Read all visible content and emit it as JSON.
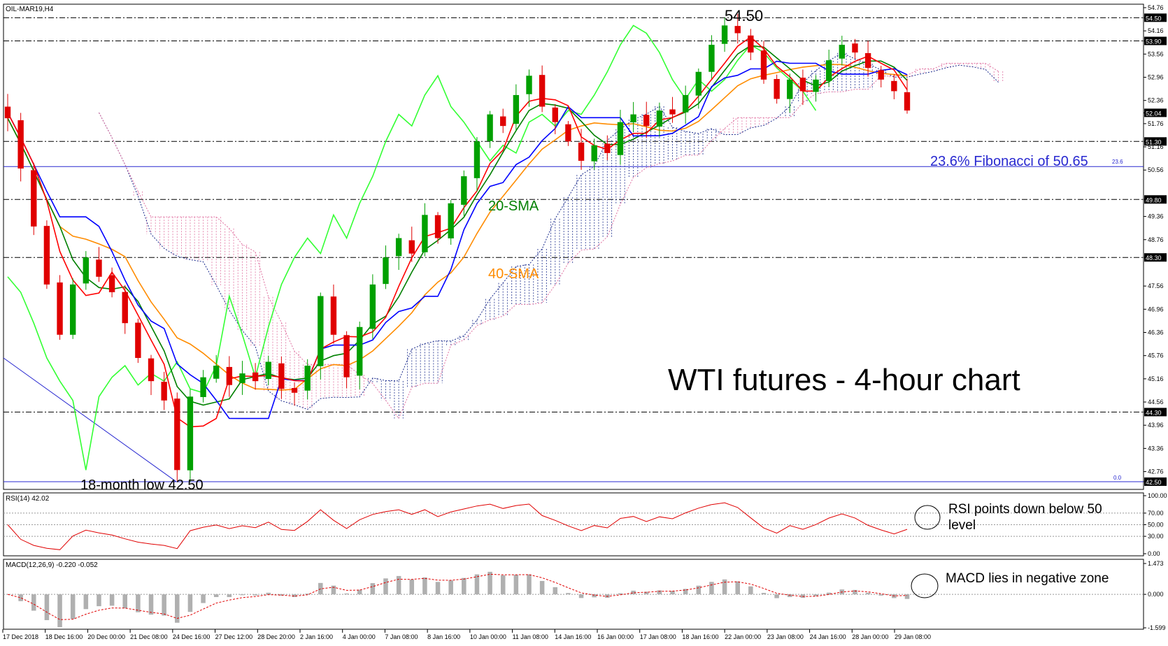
{
  "header": {
    "main_title": "OIL-MAR19,H4",
    "rsi_title": "RSI(14) 42.02",
    "macd_title": "MACD(12,26,9) -0.220 -0.052"
  },
  "annotations": {
    "chart_title": "WTI futures - 4-hour chart",
    "high_label": "54.50",
    "low_label": "18-month low 42.50",
    "fib_label": "23.6% Fibonacci of 50.65",
    "fib_small": "23.6",
    "zero_small": "0.0",
    "sma20_label": "20-SMA",
    "sma40_label": "40-SMA",
    "rsi_note_1": "RSI points down below 50",
    "rsi_note_2": "level",
    "macd_note": "MACD lies in negative zone"
  },
  "chart_data": {
    "type": "candlestick",
    "price_axis": {
      "ticks": [
        "54.76",
        "54.50",
        "54.16",
        "53.90",
        "53.56",
        "52.96",
        "52.36",
        "52.04",
        "51.76",
        "51.30",
        "51.16",
        "50.56",
        "49.80",
        "49.36",
        "48.76",
        "48.30",
        "47.56",
        "46.96",
        "46.36",
        "45.76",
        "45.16",
        "44.56",
        "44.30",
        "43.96",
        "43.36",
        "42.76",
        "42.50"
      ],
      "ylim": [
        42.3,
        54.85
      ]
    },
    "x_labels": [
      "17 Dec 2018",
      "18 Dec 16:00",
      "20 Dec 00:00",
      "21 Dec 08:00",
      "24 Dec 16:00",
      "27 Dec 12:00",
      "28 Dec 20:00",
      "2 Jan 16:00",
      "4 Jan 00:00",
      "7 Jan 08:00",
      "8 Jan 16:00",
      "10 Jan 00:00",
      "11 Jan 08:00",
      "14 Jan 16:00",
      "16 Jan 00:00",
      "17 Jan 08:00",
      "18 Jan 16:00",
      "22 Jan 00:00",
      "23 Jan 08:00",
      "24 Jan 16:00",
      "28 Jan 00:00",
      "29 Jan 08:00"
    ],
    "levels": [
      {
        "value": 54.5,
        "style": "dash-dot",
        "label": "54.50"
      },
      {
        "value": 53.9,
        "style": "dash-dot",
        "label": "53.90"
      },
      {
        "value": 51.3,
        "style": "dash-dot",
        "label": "51.30"
      },
      {
        "value": 50.65,
        "style": "solid-blue",
        "label": "23.6"
      },
      {
        "value": 49.8,
        "style": "dash-dot",
        "label": "49.80"
      },
      {
        "value": 48.3,
        "style": "dash-dot",
        "label": "48.30"
      },
      {
        "value": 44.3,
        "style": "dash-dot",
        "label": "44.30"
      },
      {
        "value": 42.5,
        "style": "solid-blue",
        "label": "42.50"
      }
    ],
    "current_price": 52.04,
    "close_path": [
      51.9,
      50.6,
      49.1,
      47.6,
      46.3,
      47.6,
      48.3,
      47.8,
      47.4,
      46.6,
      45.7,
      45.1,
      44.6,
      42.8,
      44.7,
      45.2,
      45.5,
      45.0,
      45.3,
      45.1,
      45.6,
      44.9,
      44.8,
      45.5,
      47.3,
      46.3,
      45.2,
      46.5,
      47.6,
      48.3,
      48.8,
      48.4,
      49.4,
      48.8,
      49.7,
      50.4,
      51.3,
      52.0,
      51.7,
      52.5,
      53.0,
      52.2,
      51.8,
      51.3,
      50.8,
      51.2,
      51.0,
      51.8,
      52.0,
      51.7,
      52.1,
      52.0,
      52.5,
      53.1,
      53.8,
      54.3,
      54.1,
      53.6,
      52.9,
      52.4,
      52.9,
      52.6,
      52.9,
      53.4,
      53.8,
      53.6,
      53.2,
      52.9,
      52.6,
      52.1
    ],
    "colors": {
      "bull": "#00a000",
      "bear": "#e00000",
      "tenkan": "#ff0000",
      "kijun": "#0000ff",
      "sma20": "#008000",
      "sma40": "#ff8c00",
      "chikou": "#33ff33",
      "cloud_bull": "#1a2b8c",
      "cloud_bear": "#e070a0",
      "fib": "#2828d0"
    },
    "rsi": {
      "ylim": [
        0,
        100
      ],
      "ticks": [
        "100.00",
        "70.00",
        "50.00",
        "30.00",
        "0.00"
      ],
      "last": 42.02
    },
    "macd": {
      "ticks": [
        "1.473",
        "0.000",
        "-1.599"
      ],
      "main": -0.22,
      "signal": -0.052
    }
  }
}
